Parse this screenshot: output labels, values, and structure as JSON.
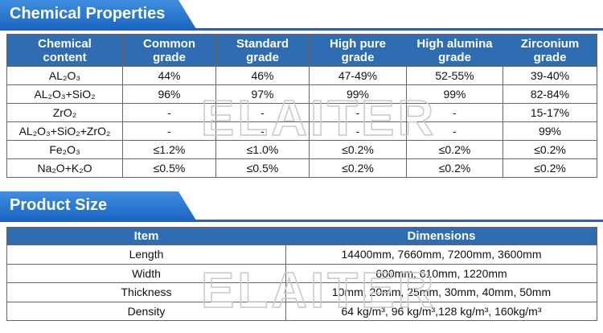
{
  "watermark": "ELAITER",
  "sections": [
    {
      "title": "Chemical Properties",
      "table": {
        "header": [
          "Chemical\ncontent",
          "Common\ngrade",
          "Standard\ngrade",
          "High pure\ngrade",
          "High alumina\ngrade",
          "Zirconium\ngrade"
        ],
        "rows": [
          [
            "AL₂O₃",
            "44%",
            "46%",
            "47-49%",
            "52-55%",
            "39-40%"
          ],
          [
            "AL₂O₃+SiO₂",
            "96%",
            "97%",
            "99%",
            "99%",
            "82-84%"
          ],
          [
            "ZrO₂",
            "-",
            "-",
            "-",
            "-",
            "15-17%"
          ],
          [
            "AL₂O₃+SiO₂+ZrO₂",
            "-",
            "-",
            "-",
            "-",
            "99%"
          ],
          [
            "Fe₂O₃",
            "≤1.2%",
            "≤1.0%",
            "≤0.2%",
            "≤0.2%",
            "≤0.2%"
          ],
          [
            "Na₂O+K₂O",
            "≤0.5%",
            "≤0.5%",
            "≤0.2%",
            "≤0.2%",
            "≤0.2%"
          ]
        ]
      }
    },
    {
      "title": "Product Size",
      "table": {
        "header": [
          "Item",
          "Dimensions"
        ],
        "rows": [
          [
            "Length",
            "14400mm, 7660mm, 7200mm, 3600mm"
          ],
          [
            "Width",
            "600mm, 610mm, 1220mm"
          ],
          [
            "Thickness",
            "10mm, 20mm, 25mm, 30mm, 40mm, 50mm"
          ],
          [
            "Density",
            "64 kg/m³, 96 kg/m³,128 kg/m³, 160kg/m³"
          ]
        ]
      }
    }
  ]
}
